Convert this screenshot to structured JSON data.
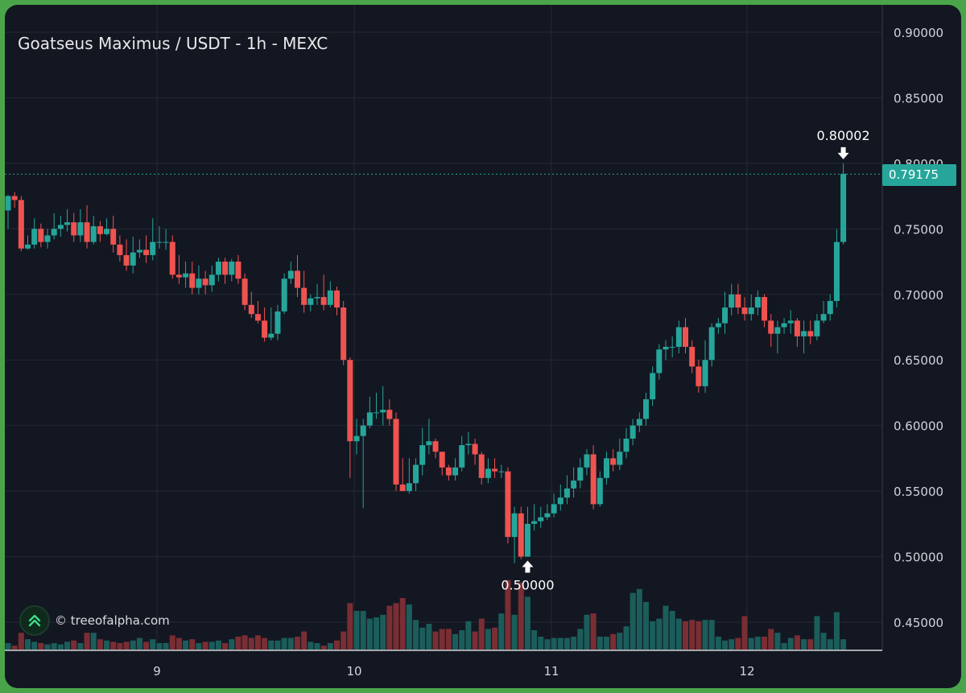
{
  "title": "Goatseus Maximus / USDT - 1h - MEXC",
  "watermark": "© treeofalpha.com",
  "current_price_label": "0.79175",
  "colors": {
    "up": "#26a69a",
    "down": "#ef5350",
    "up_volume": "#1b5d5b",
    "down_volume": "#7a2e33",
    "background": "#131722",
    "border": "#4aa54a"
  },
  "chart_data": {
    "type": "candlestick",
    "title": "Goatseus Maximus / USDT - 1h - MEXC",
    "ylim": [
      0.43,
      0.92
    ],
    "y_ticks": [
      "0.90000",
      "0.85000",
      "0.80000",
      "0.75000",
      "0.70000",
      "0.65000",
      "0.60000",
      "0.55000",
      "0.50000",
      "0.45000"
    ],
    "x_ticks": [
      "9",
      "10",
      "11",
      "12"
    ],
    "current_price": 0.79175,
    "annotations": [
      {
        "label": "0.80002",
        "price": 0.80002,
        "position": "above"
      },
      {
        "label": "0.50000",
        "price": 0.5,
        "position": "below"
      }
    ],
    "candles": [
      [
        0.764,
        0.775,
        0.75,
        0.776
      ],
      [
        0.775,
        0.772,
        0.766,
        0.778
      ],
      [
        0.772,
        0.735,
        0.733,
        0.775
      ],
      [
        0.735,
        0.738,
        0.734,
        0.745
      ],
      [
        0.738,
        0.75,
        0.735,
        0.758
      ],
      [
        0.75,
        0.74,
        0.736,
        0.754
      ],
      [
        0.74,
        0.745,
        0.735,
        0.75
      ],
      [
        0.745,
        0.75,
        0.742,
        0.762
      ],
      [
        0.75,
        0.753,
        0.744,
        0.76
      ],
      [
        0.753,
        0.755,
        0.748,
        0.765
      ],
      [
        0.755,
        0.745,
        0.74,
        0.762
      ],
      [
        0.745,
        0.755,
        0.74,
        0.765
      ],
      [
        0.755,
        0.74,
        0.735,
        0.768
      ],
      [
        0.74,
        0.752,
        0.738,
        0.76
      ],
      [
        0.752,
        0.746,
        0.74,
        0.756
      ],
      [
        0.746,
        0.75,
        0.745,
        0.758
      ],
      [
        0.75,
        0.738,
        0.732,
        0.76
      ],
      [
        0.738,
        0.73,
        0.725,
        0.745
      ],
      [
        0.73,
        0.722,
        0.718,
        0.742
      ],
      [
        0.722,
        0.732,
        0.716,
        0.744
      ],
      [
        0.732,
        0.734,
        0.728,
        0.742
      ],
      [
        0.734,
        0.73,
        0.724,
        0.745
      ],
      [
        0.73,
        0.74,
        0.726,
        0.758
      ],
      [
        0.74,
        0.74,
        0.735,
        0.752
      ],
      [
        0.74,
        0.74,
        0.734,
        0.75
      ],
      [
        0.74,
        0.715,
        0.712,
        0.745
      ],
      [
        0.715,
        0.713,
        0.708,
        0.73
      ],
      [
        0.713,
        0.716,
        0.705,
        0.725
      ],
      [
        0.716,
        0.705,
        0.7,
        0.725
      ],
      [
        0.705,
        0.712,
        0.7,
        0.722
      ],
      [
        0.712,
        0.707,
        0.7,
        0.718
      ],
      [
        0.707,
        0.715,
        0.702,
        0.722
      ],
      [
        0.715,
        0.725,
        0.71,
        0.728
      ],
      [
        0.725,
        0.715,
        0.708,
        0.728
      ],
      [
        0.715,
        0.725,
        0.71,
        0.727
      ],
      [
        0.725,
        0.712,
        0.708,
        0.73
      ],
      [
        0.712,
        0.692,
        0.688,
        0.716
      ],
      [
        0.692,
        0.685,
        0.682,
        0.702
      ],
      [
        0.685,
        0.68,
        0.678,
        0.695
      ],
      [
        0.68,
        0.667,
        0.664,
        0.69
      ],
      [
        0.667,
        0.67,
        0.665,
        0.69
      ],
      [
        0.67,
        0.687,
        0.665,
        0.692
      ],
      [
        0.687,
        0.712,
        0.685,
        0.716
      ],
      [
        0.712,
        0.718,
        0.708,
        0.725
      ],
      [
        0.718,
        0.705,
        0.698,
        0.73
      ],
      [
        0.705,
        0.692,
        0.686,
        0.718
      ],
      [
        0.692,
        0.697,
        0.687,
        0.7
      ],
      [
        0.697,
        0.698,
        0.692,
        0.708
      ],
      [
        0.698,
        0.692,
        0.688,
        0.715
      ],
      [
        0.692,
        0.703,
        0.69,
        0.71
      ],
      [
        0.703,
        0.69,
        0.684,
        0.706
      ],
      [
        0.69,
        0.65,
        0.646,
        0.695
      ],
      [
        0.65,
        0.588,
        0.56,
        0.652
      ],
      [
        0.588,
        0.592,
        0.578,
        0.605
      ],
      [
        0.592,
        0.6,
        0.537,
        0.605
      ],
      [
        0.6,
        0.61,
        0.598,
        0.622
      ],
      [
        0.61,
        0.61,
        0.605,
        0.625
      ],
      [
        0.61,
        0.612,
        0.6,
        0.63
      ],
      [
        0.612,
        0.605,
        0.6,
        0.62
      ],
      [
        0.605,
        0.555,
        0.55,
        0.61
      ],
      [
        0.555,
        0.55,
        0.55,
        0.575
      ],
      [
        0.55,
        0.556,
        0.548,
        0.575
      ],
      [
        0.556,
        0.57,
        0.55,
        0.575
      ],
      [
        0.57,
        0.585,
        0.562,
        0.598
      ],
      [
        0.585,
        0.588,
        0.578,
        0.605
      ],
      [
        0.588,
        0.58,
        0.575,
        0.59
      ],
      [
        0.58,
        0.568,
        0.562,
        0.58
      ],
      [
        0.568,
        0.562,
        0.558,
        0.57
      ],
      [
        0.562,
        0.568,
        0.558,
        0.575
      ],
      [
        0.568,
        0.585,
        0.565,
        0.592
      ],
      [
        0.585,
        0.586,
        0.578,
        0.595
      ],
      [
        0.586,
        0.578,
        0.57,
        0.59
      ],
      [
        0.578,
        0.56,
        0.555,
        0.58
      ],
      [
        0.56,
        0.567,
        0.556,
        0.575
      ],
      [
        0.567,
        0.565,
        0.56,
        0.575
      ],
      [
        0.565,
        0.565,
        0.56,
        0.57
      ],
      [
        0.565,
        0.515,
        0.51,
        0.568
      ],
      [
        0.515,
        0.533,
        0.495,
        0.538
      ],
      [
        0.533,
        0.5,
        0.498,
        0.538
      ],
      [
        0.5,
        0.525,
        0.5,
        0.538
      ],
      [
        0.525,
        0.527,
        0.52,
        0.54
      ],
      [
        0.527,
        0.53,
        0.522,
        0.538
      ],
      [
        0.53,
        0.533,
        0.528,
        0.54
      ],
      [
        0.533,
        0.54,
        0.53,
        0.548
      ],
      [
        0.54,
        0.545,
        0.535,
        0.555
      ],
      [
        0.545,
        0.552,
        0.54,
        0.562
      ],
      [
        0.552,
        0.558,
        0.545,
        0.568
      ],
      [
        0.558,
        0.568,
        0.552,
        0.575
      ],
      [
        0.568,
        0.578,
        0.562,
        0.582
      ],
      [
        0.578,
        0.54,
        0.536,
        0.585
      ],
      [
        0.54,
        0.56,
        0.538,
        0.565
      ],
      [
        0.56,
        0.575,
        0.555,
        0.58
      ],
      [
        0.575,
        0.57,
        0.565,
        0.582
      ],
      [
        0.57,
        0.58,
        0.566,
        0.59
      ],
      [
        0.58,
        0.59,
        0.575,
        0.598
      ],
      [
        0.59,
        0.6,
        0.585,
        0.605
      ],
      [
        0.6,
        0.605,
        0.595,
        0.61
      ],
      [
        0.605,
        0.62,
        0.6,
        0.625
      ],
      [
        0.62,
        0.64,
        0.615,
        0.645
      ],
      [
        0.64,
        0.658,
        0.635,
        0.662
      ],
      [
        0.658,
        0.66,
        0.65,
        0.665
      ],
      [
        0.66,
        0.66,
        0.652,
        0.668
      ],
      [
        0.66,
        0.675,
        0.655,
        0.68
      ],
      [
        0.675,
        0.66,
        0.655,
        0.682
      ],
      [
        0.66,
        0.645,
        0.64,
        0.665
      ],
      [
        0.645,
        0.63,
        0.625,
        0.65
      ],
      [
        0.63,
        0.65,
        0.625,
        0.665
      ],
      [
        0.65,
        0.675,
        0.645,
        0.678
      ],
      [
        0.675,
        0.678,
        0.67,
        0.682
      ],
      [
        0.678,
        0.69,
        0.67,
        0.702
      ],
      [
        0.69,
        0.7,
        0.684,
        0.708
      ],
      [
        0.7,
        0.69,
        0.685,
        0.708
      ],
      [
        0.69,
        0.685,
        0.68,
        0.698
      ],
      [
        0.685,
        0.69,
        0.68,
        0.7
      ],
      [
        0.69,
        0.698,
        0.684,
        0.703
      ],
      [
        0.698,
        0.68,
        0.675,
        0.7
      ],
      [
        0.68,
        0.67,
        0.66,
        0.685
      ],
      [
        0.67,
        0.675,
        0.655,
        0.68
      ],
      [
        0.675,
        0.678,
        0.67,
        0.682
      ],
      [
        0.678,
        0.68,
        0.67,
        0.688
      ],
      [
        0.68,
        0.668,
        0.66,
        0.682
      ],
      [
        0.668,
        0.672,
        0.655,
        0.68
      ],
      [
        0.672,
        0.668,
        0.662,
        0.68
      ],
      [
        0.668,
        0.68,
        0.665,
        0.685
      ],
      [
        0.68,
        0.685,
        0.678,
        0.695
      ],
      [
        0.685,
        0.695,
        0.68,
        0.7
      ],
      [
        0.695,
        0.74,
        0.69,
        0.75
      ],
      [
        0.74,
        0.792,
        0.738,
        0.8
      ]
    ],
    "volumes": [
      0.05,
      0.03,
      0.13,
      0.08,
      0.06,
      0.05,
      0.04,
      0.05,
      0.04,
      0.06,
      0.07,
      0.05,
      0.13,
      0.13,
      0.08,
      0.07,
      0.06,
      0.05,
      0.06,
      0.07,
      0.09,
      0.06,
      0.08,
      0.05,
      0.05,
      0.11,
      0.09,
      0.07,
      0.08,
      0.05,
      0.06,
      0.06,
      0.07,
      0.05,
      0.08,
      0.1,
      0.11,
      0.09,
      0.11,
      0.09,
      0.07,
      0.07,
      0.09,
      0.09,
      0.1,
      0.14,
      0.06,
      0.05,
      0.03,
      0.05,
      0.07,
      0.14,
      0.36,
      0.3,
      0.3,
      0.24,
      0.25,
      0.27,
      0.34,
      0.36,
      0.4,
      0.35,
      0.23,
      0.17,
      0.2,
      0.14,
      0.16,
      0.16,
      0.12,
      0.15,
      0.22,
      0.14,
      0.24,
      0.16,
      0.17,
      0.28,
      0.54,
      0.27,
      0.52,
      0.41,
      0.15,
      0.1,
      0.08,
      0.09,
      0.09,
      0.09,
      0.1,
      0.16,
      0.27,
      0.28,
      0.1,
      0.1,
      0.12,
      0.13,
      0.18,
      0.44,
      0.47,
      0.37,
      0.22,
      0.24,
      0.34,
      0.3,
      0.24,
      0.22,
      0.23,
      0.22,
      0.23,
      0.23,
      0.1,
      0.07,
      0.08,
      0.09,
      0.26,
      0.09,
      0.1,
      0.1,
      0.16,
      0.13,
      0.05,
      0.09,
      0.11,
      0.08,
      0.08,
      0.26,
      0.13,
      0.08,
      0.29,
      0.08
    ]
  }
}
